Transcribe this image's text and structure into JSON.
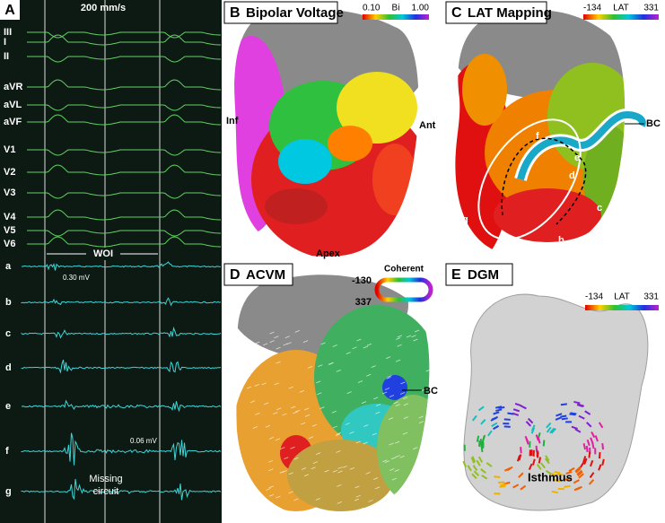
{
  "panels": {
    "a": {
      "letter": "A",
      "title": "200 mm/s",
      "leads": [
        "III",
        "I",
        "II",
        "aVR",
        "aVL",
        "aVF",
        "V1",
        "V2",
        "V3",
        "V4",
        "V5",
        "V6"
      ],
      "channels": [
        "a",
        "b",
        "c",
        "d",
        "e",
        "f",
        "g"
      ],
      "woi": "WOI",
      "scale_a": "0.30 mV",
      "scale_f": "0.06 mV",
      "missing": [
        "Missing",
        "circuit"
      ]
    },
    "b": {
      "letter": "B",
      "title": "Bipolar Voltage",
      "scale_min": "0.10",
      "scale_name": "Bi",
      "scale_max": "1.00",
      "labels": [
        "Inf",
        "Ant",
        "Apex"
      ]
    },
    "c": {
      "letter": "C",
      "title": "LAT Mapping",
      "scale_min": "-134",
      "scale_name": "LAT",
      "scale_max": "331",
      "bc": "BC",
      "points": [
        "a",
        "b",
        "c",
        "d",
        "e",
        "f",
        "g"
      ]
    },
    "d": {
      "letter": "D",
      "title": "ACVM",
      "scale_min": "-130",
      "scale_max": "337",
      "scale_name": "Coherent",
      "bc": "BC"
    },
    "e": {
      "letter": "E",
      "title": "DGM",
      "scale_min": "-134",
      "scale_name": "LAT",
      "scale_max": "331",
      "isthmus": "Isthmus"
    }
  }
}
